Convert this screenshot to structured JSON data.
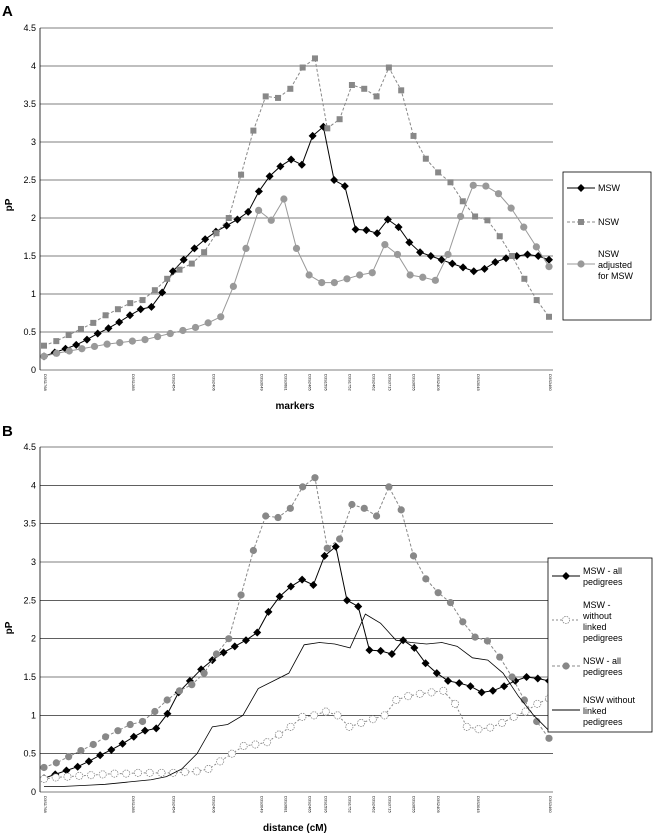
{
  "chart_data": [
    {
      "panel": "A",
      "type": "line",
      "ylabel": "pP",
      "xlabel": "markers",
      "ylim": [
        0,
        4.5
      ],
      "yticks": [
        "0",
        "0.5",
        "1",
        "1.5",
        "2",
        "2.5",
        "3",
        "3.5",
        "4",
        "4.5"
      ],
      "grid": true,
      "legend": "right",
      "marker_labels": [
        "D3S1768",
        "D3S1285",
        "D3S2454",
        "D3S2406",
        "D3S3049",
        "D3S3681",
        "D3S2465",
        "D3S1595",
        "D3S1752",
        "D3S2462",
        "D3S3715",
        "D3S3655",
        "D3S2409",
        "D3S3045",
        "D3S3460"
      ],
      "marker_label_idx": [
        0,
        11,
        16,
        21,
        27,
        30,
        33,
        35,
        38,
        41,
        43,
        46,
        49,
        54,
        63
      ],
      "series": [
        {
          "name": "MSW",
          "color": "#000000",
          "dash": "",
          "marker": "diamond",
          "values": [
            0.18,
            0.23,
            0.28,
            0.33,
            0.4,
            0.48,
            0.55,
            0.63,
            0.72,
            0.8,
            0.83,
            1.02,
            1.3,
            1.45,
            1.6,
            1.72,
            1.82,
            1.9,
            1.98,
            2.08,
            2.35,
            2.55,
            2.68,
            2.77,
            2.7,
            3.08,
            3.2,
            2.5,
            2.42,
            1.85,
            1.84,
            1.8,
            1.98,
            1.88,
            1.68,
            1.55,
            1.5,
            1.45,
            1.4,
            1.35,
            1.3,
            1.33,
            1.42,
            1.47,
            1.5,
            1.52,
            1.5,
            1.45
          ]
        },
        {
          "name": "NSW",
          "color": "#888888",
          "dash": "3,2",
          "marker": "square",
          "values": [
            0.32,
            0.38,
            0.46,
            0.54,
            0.62,
            0.72,
            0.8,
            0.88,
            0.92,
            1.05,
            1.2,
            1.32,
            1.4,
            1.55,
            1.8,
            2.0,
            2.57,
            3.15,
            3.6,
            3.58,
            3.7,
            3.98,
            4.1,
            3.18,
            3.3,
            3.75,
            3.7,
            3.6,
            3.98,
            3.68,
            3.08,
            2.78,
            2.6,
            2.47,
            2.22,
            2.02,
            1.97,
            1.76,
            1.5,
            1.2,
            0.92,
            0.7
          ]
        },
        {
          "name": "NSW adjusted for MSW",
          "color": "#999999",
          "dash": "",
          "marker": "circle",
          "values": [
            0.18,
            0.22,
            0.25,
            0.28,
            0.31,
            0.34,
            0.36,
            0.38,
            0.4,
            0.44,
            0.48,
            0.52,
            0.56,
            0.62,
            0.7,
            1.1,
            1.6,
            2.1,
            1.97,
            2.25,
            1.6,
            1.25,
            1.15,
            1.15,
            1.2,
            1.25,
            1.28,
            1.65,
            1.52,
            1.25,
            1.22,
            1.18,
            1.52,
            2.02,
            2.43,
            2.42,
            2.32,
            2.13,
            1.88,
            1.62,
            1.36
          ]
        }
      ]
    },
    {
      "panel": "B",
      "type": "line",
      "ylabel": "pP",
      "xlabel": "distance (cM)",
      "ylim": [
        0,
        4.5
      ],
      "yticks": [
        "0",
        "0.5",
        "1",
        "1.5",
        "2",
        "2.5",
        "3",
        "3.5",
        "4",
        "4.5"
      ],
      "grid": true,
      "legend": "right",
      "marker_labels": [
        "D3S1768",
        "D3S1285",
        "D3S2454",
        "D3S2406",
        "D3S3049",
        "D3S3681",
        "D3S2465",
        "D3S1595",
        "D3S1752",
        "D3S2462",
        "D3S3715",
        "D3S3655",
        "D3S2409",
        "D3S3045",
        "D3S3460"
      ],
      "marker_label_idx": [
        0,
        11,
        16,
        21,
        27,
        30,
        33,
        35,
        38,
        41,
        43,
        46,
        49,
        54,
        63
      ],
      "series": [
        {
          "name": "MSW - all pedigrees",
          "color": "#000000",
          "dash": "",
          "marker": "diamond",
          "values": [
            0.18,
            0.23,
            0.28,
            0.33,
            0.4,
            0.48,
            0.55,
            0.63,
            0.72,
            0.8,
            0.83,
            1.02,
            1.3,
            1.45,
            1.6,
            1.72,
            1.82,
            1.9,
            1.98,
            2.08,
            2.35,
            2.55,
            2.68,
            2.77,
            2.7,
            3.08,
            3.2,
            2.5,
            2.42,
            1.85,
            1.84,
            1.8,
            1.98,
            1.88,
            1.68,
            1.55,
            1.45,
            1.42,
            1.38,
            1.3,
            1.32,
            1.38,
            1.45,
            1.5,
            1.48,
            1.45
          ]
        },
        {
          "name": "MSW - without linked pedigrees",
          "color": "#888888",
          "dash": "2,2",
          "marker": "open-circle",
          "values": [
            0.17,
            0.19,
            0.2,
            0.21,
            0.22,
            0.23,
            0.24,
            0.24,
            0.25,
            0.25,
            0.25,
            0.25,
            0.26,
            0.27,
            0.3,
            0.4,
            0.5,
            0.6,
            0.62,
            0.65,
            0.75,
            0.85,
            0.98,
            1.0,
            1.05,
            1.0,
            0.85,
            0.9,
            0.95,
            1.0,
            1.2,
            1.25,
            1.28,
            1.3,
            1.32,
            1.15,
            0.85,
            0.82,
            0.84,
            0.9,
            0.98,
            1.05,
            1.15,
            1.22
          ]
        },
        {
          "name": "NSW - all pedigrees",
          "color": "#888888",
          "dash": "3,2",
          "marker": "circle",
          "values": [
            0.32,
            0.38,
            0.46,
            0.54,
            0.62,
            0.72,
            0.8,
            0.88,
            0.92,
            1.05,
            1.2,
            1.32,
            1.4,
            1.55,
            1.8,
            2.0,
            2.57,
            3.15,
            3.6,
            3.58,
            3.7,
            3.98,
            4.1,
            3.18,
            3.3,
            3.75,
            3.7,
            3.6,
            3.98,
            3.68,
            3.08,
            2.78,
            2.6,
            2.47,
            2.22,
            2.02,
            1.97,
            1.76,
            1.5,
            1.2,
            0.92,
            0.7
          ]
        },
        {
          "name": "NSW without linked pedigrees",
          "color": "#000000",
          "dash": "",
          "marker": "none",
          "values": [
            0.07,
            0.07,
            0.08,
            0.09,
            0.1,
            0.12,
            0.14,
            0.16,
            0.2,
            0.3,
            0.5,
            0.85,
            0.88,
            1.0,
            1.35,
            1.45,
            1.55,
            1.92,
            1.95,
            1.93,
            1.88,
            2.32,
            2.2,
            1.98,
            1.95,
            1.93,
            1.95,
            1.9,
            1.75,
            1.72,
            1.55,
            1.25,
            1.0,
            0.8
          ]
        }
      ]
    }
  ]
}
